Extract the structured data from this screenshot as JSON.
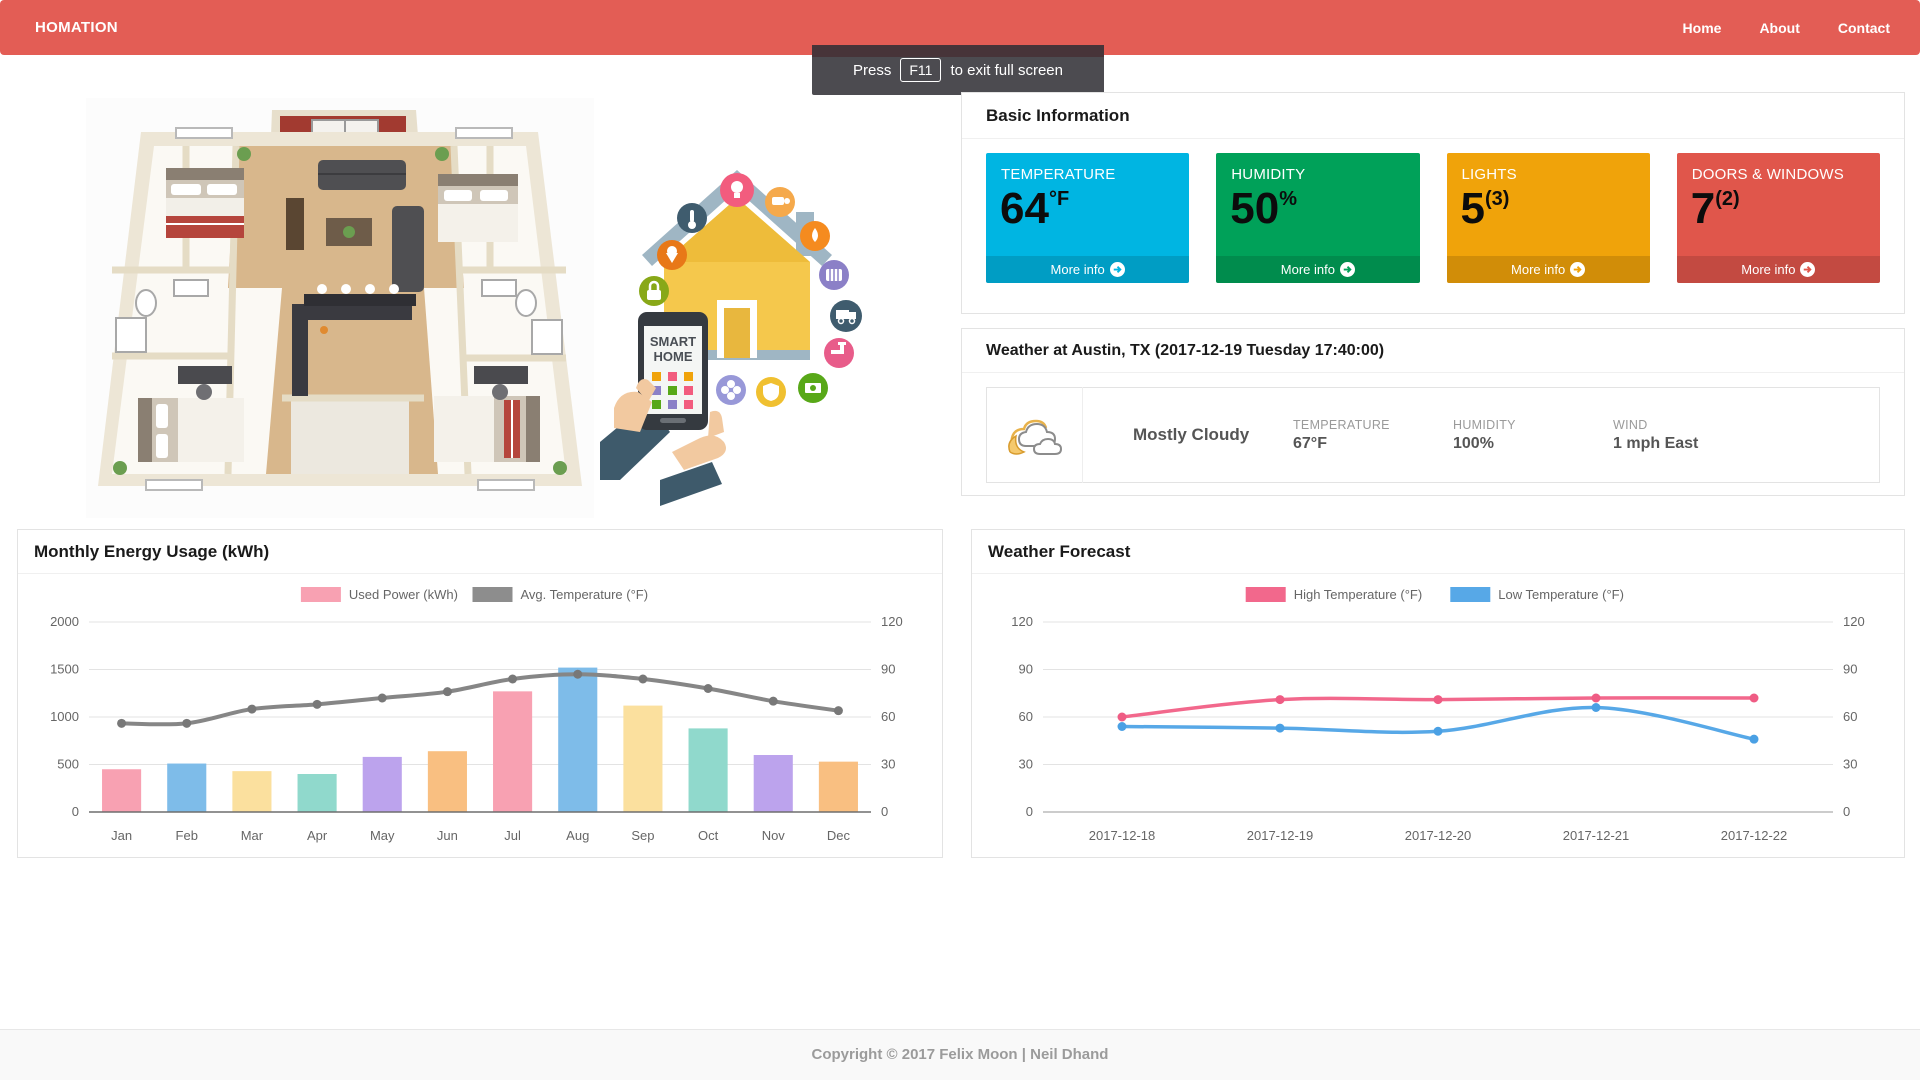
{
  "navbar": {
    "brand": "HOMATION",
    "color": "#e35d55",
    "links": [
      {
        "label": "Home"
      },
      {
        "label": "About"
      },
      {
        "label": "Contact"
      }
    ]
  },
  "fullscreen_toast": {
    "press": "Press",
    "key": "F11",
    "suffix": "to exit full screen"
  },
  "basic_info": {
    "title": "Basic Information",
    "tiles": [
      {
        "label": "TEMPERATURE",
        "value": "64",
        "unit": "°F",
        "color": "#00b5e2",
        "more_info": "More info"
      },
      {
        "label": "HUMIDITY",
        "value": "50",
        "unit": "%",
        "color": "#00a159",
        "more_info": "More info"
      },
      {
        "label": "LIGHTS",
        "value": "5",
        "unit": "(3)",
        "color": "#f0a30a",
        "more_info": "More info"
      },
      {
        "label": "DOORS & WINDOWS",
        "value": "7",
        "unit": "(2)",
        "color": "#e0564b",
        "more_info": "More info"
      }
    ]
  },
  "weather_now": {
    "title": "Weather at Austin, TX (2017-12-19 Tuesday 17:40:00)",
    "condition": "Mostly Cloudy",
    "stats": [
      {
        "label": "TEMPERATURE",
        "value": "67°F"
      },
      {
        "label": "HUMIDITY",
        "value": "100%"
      },
      {
        "label": "WIND",
        "value": "1 mph East"
      }
    ]
  },
  "energy_panel": {
    "title": "Monthly Energy Usage (kWh)"
  },
  "forecast_panel": {
    "title": "Weather Forecast"
  },
  "smart_home": {
    "line1": "SMART",
    "line2": "HOME"
  },
  "footer": {
    "copyright": "Copyright © 2017 Felix Moon | Neil Dhand"
  },
  "chart_data": [
    {
      "id": "energy",
      "type": "bar",
      "title": "Monthly Energy Usage (kWh)",
      "categories": [
        "Jan",
        "Feb",
        "Mar",
        "Apr",
        "May",
        "Jun",
        "Jul",
        "Aug",
        "Sep",
        "Oct",
        "Nov",
        "Dec"
      ],
      "series": [
        {
          "name": "Used Power (kWh)",
          "type": "bar",
          "axis": "left",
          "legend_color": "#f8a1b2",
          "values": [
            450,
            510,
            430,
            400,
            580,
            640,
            1270,
            1520,
            1120,
            880,
            600,
            530
          ],
          "bar_colors": [
            "#f8a1b2",
            "#7ebce9",
            "#fbe09e",
            "#90d9cc",
            "#bca3ed",
            "#f9bf81",
            "#f8a1b2",
            "#7ebce9",
            "#fbe09e",
            "#90d9cc",
            "#bca3ed",
            "#f9bf81"
          ]
        },
        {
          "name": "Avg. Temperature (°F)",
          "type": "line",
          "axis": "right",
          "color": "#868686",
          "point_color": "#787878",
          "width": 4,
          "legend_color": "#8d8d8d",
          "values": [
            56,
            56,
            65,
            68,
            72,
            76,
            84,
            87,
            84,
            78,
            70,
            64
          ]
        }
      ],
      "left_axis": {
        "min": 0,
        "max": 2000,
        "ticks": [
          0,
          500,
          1000,
          1500,
          2000
        ]
      },
      "right_axis": {
        "min": 0,
        "max": 120,
        "ticks": [
          0,
          30,
          60,
          90,
          120
        ]
      },
      "grid": true,
      "legend_position": "top"
    },
    {
      "id": "forecast",
      "type": "line",
      "title": "Weather Forecast",
      "categories": [
        "2017-12-18",
        "2017-12-19",
        "2017-12-20",
        "2017-12-21",
        "2017-12-22"
      ],
      "series": [
        {
          "name": "High Temperature (°F)",
          "type": "line",
          "axis": "left",
          "color": "#f2688c",
          "point_color": "#ef5c84",
          "width": 3.5,
          "legend_color": "#f2688c",
          "values": [
            60,
            71,
            71,
            72,
            72
          ]
        },
        {
          "name": "Low Temperature (°F)",
          "type": "line",
          "axis": "right",
          "color": "#57a8e7",
          "point_color": "#4aa0e4",
          "width": 3.5,
          "legend_color": "#57a8e7",
          "values": [
            54,
            53,
            51,
            66,
            46
          ]
        }
      ],
      "left_axis": {
        "min": 0,
        "max": 120,
        "ticks": [
          0,
          30,
          60,
          90,
          120
        ]
      },
      "right_axis": {
        "min": 0,
        "max": 120,
        "ticks": [
          0,
          30,
          60,
          90,
          120
        ]
      },
      "grid": true,
      "legend_position": "top"
    }
  ]
}
